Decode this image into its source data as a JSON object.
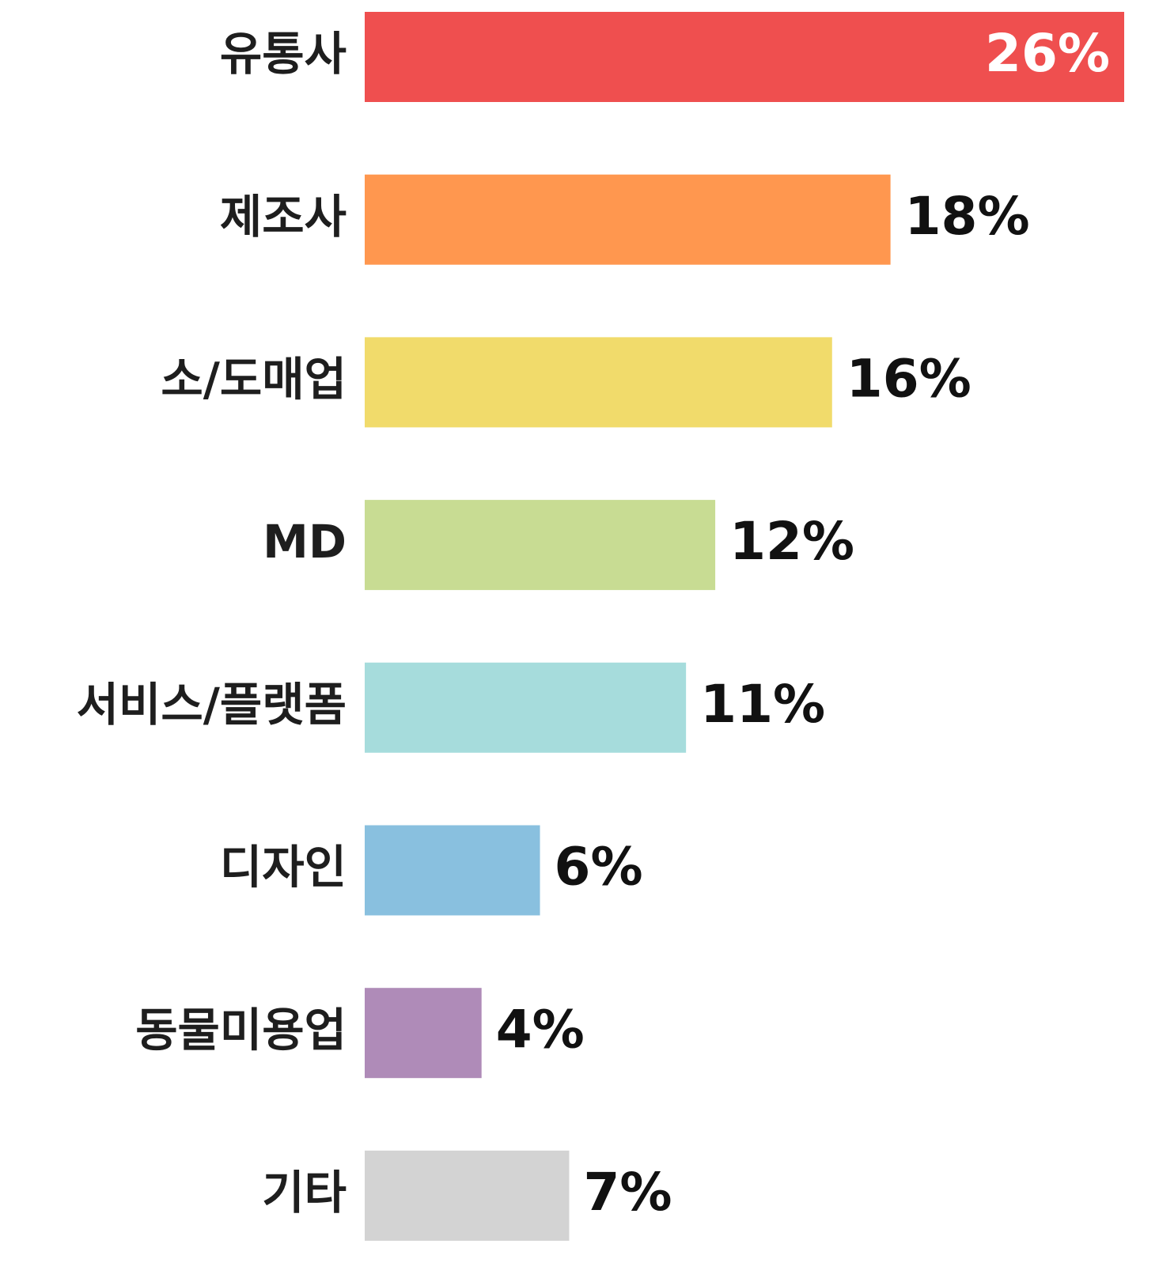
{
  "chart_data": {
    "type": "bar",
    "orientation": "horizontal",
    "categories": [
      "유통사",
      "제조사",
      "소/도매업",
      "MD",
      "서비스/플랫폼",
      "디자인",
      "동물미용업",
      "기타"
    ],
    "values": [
      26,
      18,
      16,
      12,
      11,
      6,
      4,
      7
    ],
    "value_labels": [
      "26%",
      "18%",
      "16%",
      "12%",
      "11%",
      "6%",
      "4%",
      "7%"
    ],
    "colors": [
      "#ef4f4f",
      "#ff974f",
      "#f1db6b",
      "#c8dc93",
      "#a6dcdc",
      "#89c0df",
      "#af8bb8",
      "#d3d3d3"
    ],
    "xlim": [
      0,
      26
    ]
  }
}
